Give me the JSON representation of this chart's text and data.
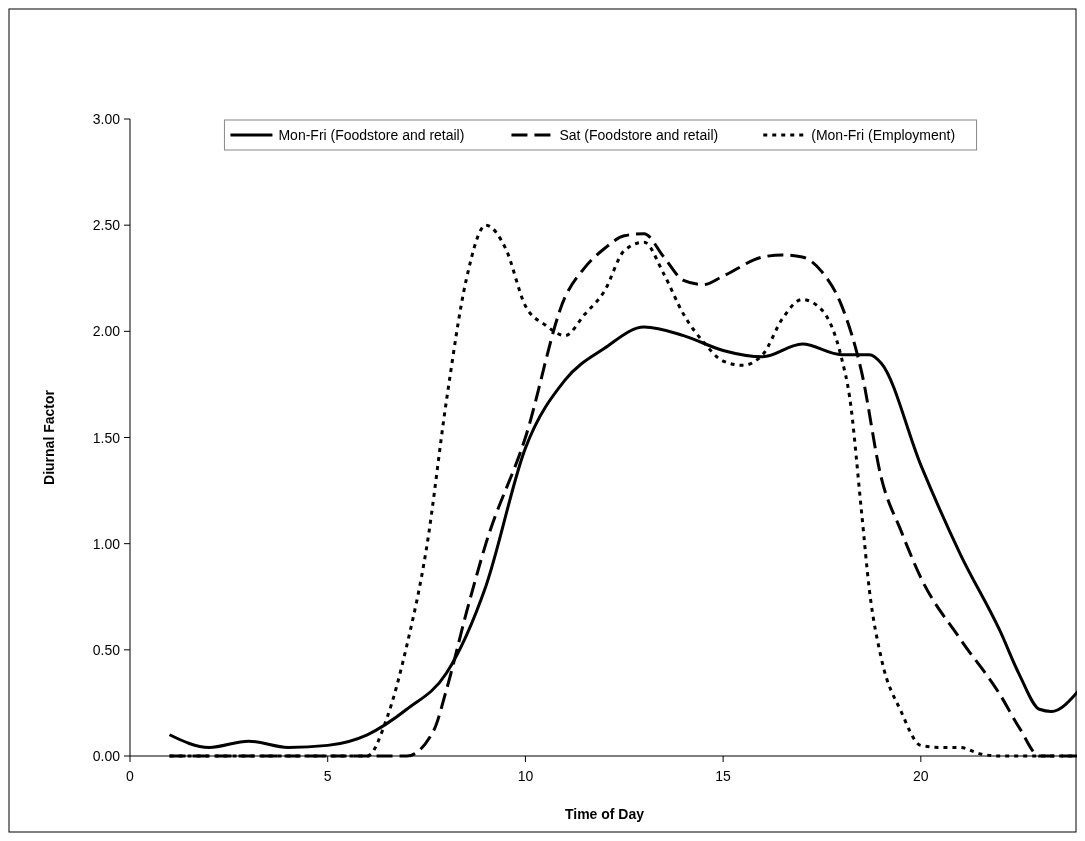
{
  "chart_data": {
    "type": "line",
    "xlabel": "Time of Day",
    "ylabel": "Diurnal Factor",
    "xlim": [
      0,
      24
    ],
    "xticks": [
      0,
      5,
      10,
      15,
      20
    ],
    "ylim": [
      0,
      3
    ],
    "yticks": [
      {
        "value": 0,
        "label": "0.00"
      },
      {
        "value": 0.5,
        "label": "0.50"
      },
      {
        "value": 1,
        "label": "1.00"
      },
      {
        "value": 1.5,
        "label": "1.50"
      },
      {
        "value": 2,
        "label": "2.00"
      },
      {
        "value": 2.5,
        "label": "2.50"
      },
      {
        "value": 3,
        "label": "3.00"
      }
    ],
    "grid": false,
    "legend": "top",
    "marker": "none",
    "series": [
      {
        "name": "Mon-Fri (Foodstore and retail)",
        "color": "#000000",
        "line_style": "solid",
        "x": [
          1,
          2,
          3,
          4,
          5,
          6,
          7,
          8,
          9,
          10,
          11,
          12,
          13,
          14,
          15,
          16,
          17,
          18,
          18.7,
          19,
          20,
          21,
          22,
          22.5,
          23,
          23.3,
          24
        ],
        "values": [
          0.1,
          0.04,
          0.07,
          0.04,
          0.05,
          0.1,
          0.22,
          0.39,
          0.8,
          1.45,
          1.77,
          1.92,
          2.02,
          1.98,
          1.91,
          1.88,
          1.94,
          1.89,
          1.89,
          1.85,
          1.37,
          0.95,
          0.59,
          0.38,
          0.22,
          0.21,
          0.31
        ]
      },
      {
        "name": "Sat (Foodstore and retail)",
        "color": "#000000",
        "line_style": "dashed",
        "x": [
          1,
          2,
          3,
          4,
          5,
          6,
          7,
          7.68,
          8,
          8.5,
          9,
          10,
          11,
          11.5,
          12,
          12.5,
          13,
          13.5,
          14,
          14.5,
          15,
          16,
          16.5,
          17,
          17.5,
          18,
          18.5,
          19,
          19.5,
          20,
          21,
          22,
          22.5,
          23,
          24
        ],
        "values": [
          0,
          0,
          0,
          0,
          0,
          0,
          0,
          0.12,
          0.31,
          0.67,
          1,
          1.5,
          2.16,
          2.3,
          2.39,
          2.45,
          2.46,
          2.35,
          2.24,
          2.22,
          2.26,
          2.35,
          2.36,
          2.35,
          2.28,
          2.12,
          1.81,
          1.31,
          1.06,
          0.84,
          0.55,
          0.29,
          0.13,
          0,
          0
        ]
      },
      {
        "name": "(Mon-Fri (Employment)",
        "color": "#000000",
        "line_style": "dotted",
        "x": [
          1,
          2,
          3,
          4,
          5,
          6,
          6.5,
          7,
          7.5,
          8,
          8.5,
          9,
          9.5,
          10,
          10.5,
          11,
          11.5,
          12,
          12.5,
          13,
          13.5,
          14,
          14.5,
          15,
          15.5,
          16,
          16.5,
          17,
          17.5,
          18,
          18.2,
          18.5,
          18.7,
          19,
          19.5,
          20,
          20.5,
          21,
          21.5,
          22,
          23,
          24
        ],
        "values": [
          0,
          0,
          0,
          0,
          0,
          0,
          0.18,
          0.52,
          0.98,
          1.67,
          2.24,
          2.5,
          2.39,
          2.12,
          2.03,
          1.98,
          2.08,
          2.19,
          2.38,
          2.42,
          2.27,
          2.08,
          1.95,
          1.86,
          1.84,
          1.89,
          2.06,
          2.15,
          2.1,
          1.87,
          1.69,
          1.15,
          0.78,
          0.46,
          0.21,
          0.05,
          0.04,
          0.04,
          0.01,
          0,
          0,
          0
        ]
      }
    ]
  }
}
